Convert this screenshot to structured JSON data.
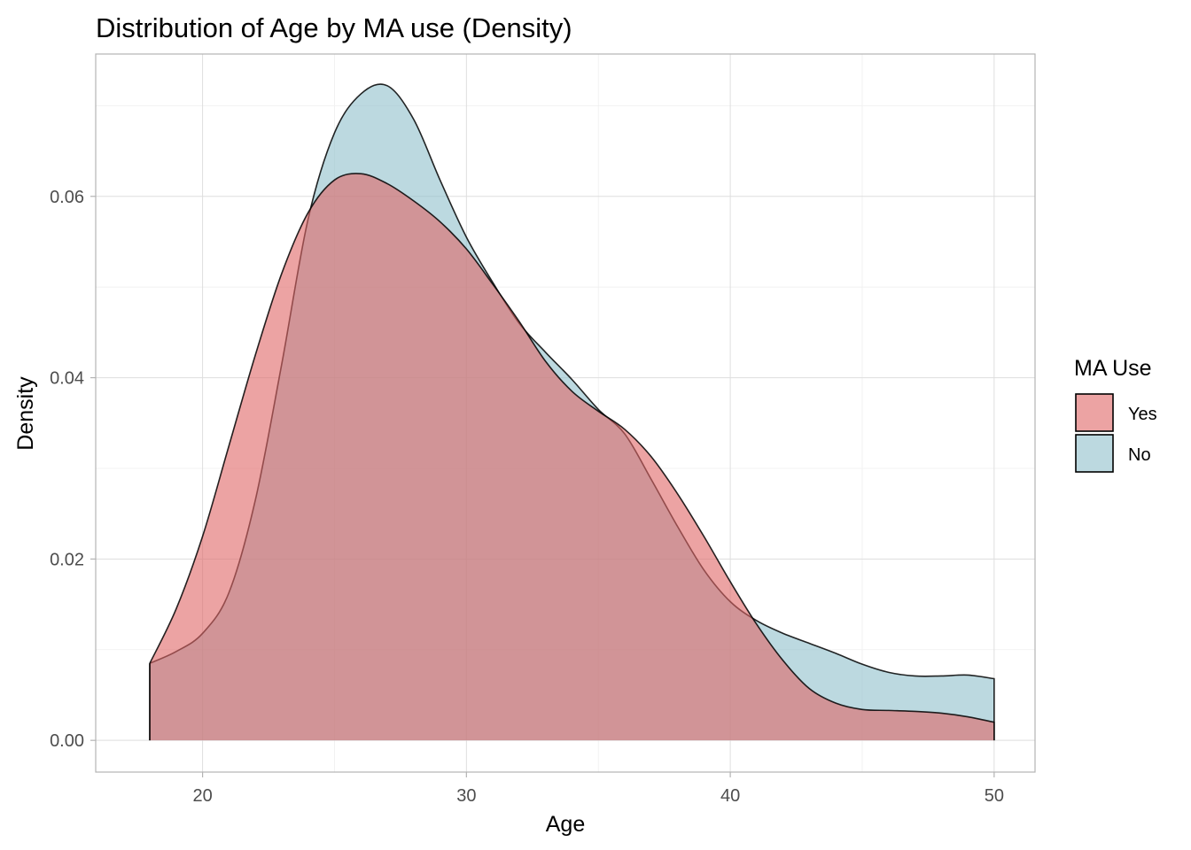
{
  "chart_data": {
    "type": "area",
    "title": "Distribution of Age by MA use (Density)",
    "xlabel": "Age",
    "ylabel": "Density",
    "xlim": [
      15.95,
      51.55
    ],
    "ylim": [
      -0.0035,
      0.0757
    ],
    "x_ticks": [
      20,
      30,
      40,
      50
    ],
    "x_tick_labels": [
      "20",
      "30",
      "40",
      "50"
    ],
    "y_ticks": [
      0,
      0.02,
      0.04,
      0.06
    ],
    "y_tick_labels": [
      "0.00",
      "0.02",
      "0.04",
      "0.06"
    ],
    "grid": true,
    "legend": {
      "title": "MA Use",
      "position": "right"
    },
    "series": [
      {
        "name": "Yes",
        "color": "#e06666",
        "x": [
          18,
          19,
          20,
          21,
          22,
          23,
          24,
          25,
          26,
          27,
          28,
          29,
          30,
          31,
          32,
          33,
          34,
          35,
          36,
          37,
          38,
          39,
          40,
          41,
          42,
          43,
          44,
          45,
          46,
          47,
          48,
          49,
          50
        ],
        "y": [
          0.0085,
          0.0145,
          0.0225,
          0.0325,
          0.0425,
          0.0515,
          0.0582,
          0.0618,
          0.0625,
          0.0614,
          0.0595,
          0.0572,
          0.0542,
          0.0503,
          0.0462,
          0.0418,
          0.0385,
          0.0363,
          0.0343,
          0.0313,
          0.0272,
          0.0225,
          0.0175,
          0.0128,
          0.0088,
          0.0057,
          0.0041,
          0.0034,
          0.0033,
          0.0032,
          0.003,
          0.0026,
          0.002
        ]
      },
      {
        "name": "No",
        "color": "#8fbfcc",
        "x": [
          18,
          19,
          20,
          21,
          22,
          23,
          24,
          25,
          26,
          27,
          28,
          29,
          30,
          31,
          32,
          33,
          34,
          35,
          36,
          37,
          38,
          39,
          40,
          41,
          42,
          43,
          44,
          45,
          46,
          47,
          48,
          49,
          50
        ],
        "y": [
          0.0085,
          0.0098,
          0.0118,
          0.0163,
          0.0265,
          0.0415,
          0.0575,
          0.067,
          0.0713,
          0.0722,
          0.0685,
          0.0618,
          0.0555,
          0.0505,
          0.046,
          0.0428,
          0.0398,
          0.0365,
          0.0338,
          0.0288,
          0.0236,
          0.0188,
          0.0153,
          0.0132,
          0.0118,
          0.0107,
          0.0096,
          0.0084,
          0.0075,
          0.0071,
          0.0071,
          0.0072,
          0.0068
        ]
      }
    ]
  }
}
